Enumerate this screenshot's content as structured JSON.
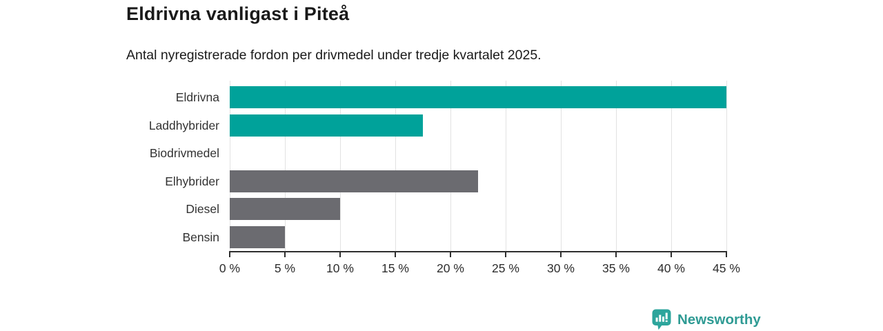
{
  "header": {
    "title": "Eldrivna vanligast i Piteå",
    "subtitle": "Antal nyregistrerade fordon per drivmedel under tredje kvartalet 2025."
  },
  "chart_data": {
    "type": "bar",
    "orientation": "horizontal",
    "title": "Eldrivna vanligast i Piteå",
    "subtitle": "Antal nyregistrerade fordon per drivmedel under tredje kvartalet 2025.",
    "categories": [
      "Eldrivna",
      "Laddhybrider",
      "Biodrivmedel",
      "Elhybrider",
      "Diesel",
      "Bensin"
    ],
    "values": [
      45,
      17.5,
      0,
      22.5,
      10,
      5
    ],
    "unit": "%",
    "bar_colors": [
      "#00a29a",
      "#00a29a",
      "#6b6b70",
      "#6b6b70",
      "#6b6b70",
      "#6b6b70"
    ],
    "xlim": [
      0,
      45
    ],
    "xticks": [
      0,
      5,
      10,
      15,
      20,
      25,
      30,
      35,
      40,
      45
    ],
    "xtick_labels": [
      "0 %",
      "5 %",
      "10 %",
      "15 %",
      "20 %",
      "25 %",
      "30 %",
      "35 %",
      "40 %",
      "45 %"
    ],
    "grid": true,
    "legend": false
  },
  "colors": {
    "accent_teal": "#00a29a",
    "muted_gray": "#6b6b70",
    "gridline": "#e2e2e2",
    "axis": "#2e2e2e",
    "text": "#1a1a1a",
    "brand_teal": "#2f9b94",
    "brand_icon_teal": "#2da59c"
  },
  "footer": {
    "brand": "Newsworthy",
    "logo_icon": "newsworthy-bar-chart-bubble-icon"
  }
}
